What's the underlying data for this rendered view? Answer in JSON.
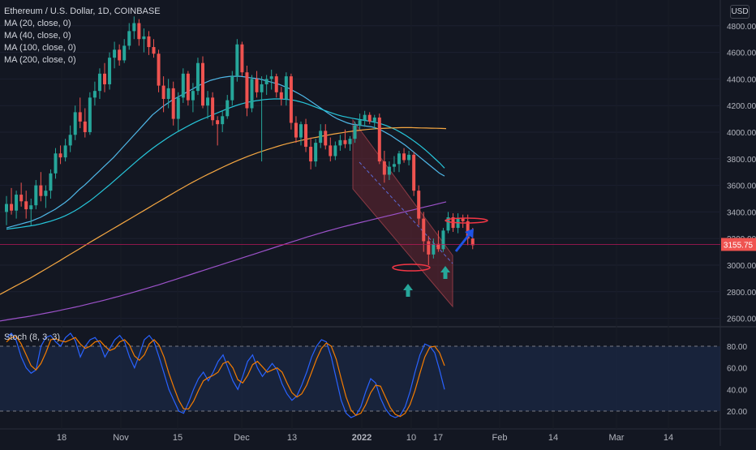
{
  "header": {
    "title": "Ethereum / U.S. Dollar, 1D, COINBASE",
    "indicators": [
      "MA (20, close, 0)",
      "MA (40, close, 0)",
      "MA (100, close, 0)",
      "MA (200, close, 0)"
    ],
    "currency_button": "USD",
    "stoch_label": "Stoch (8, 3, 3)"
  },
  "colors": {
    "background": "#131722",
    "up": "#26a69a",
    "down": "#ef5350",
    "ma20": "#4fb8e8",
    "ma40": "#26c6da",
    "ma100": "#f5a742",
    "ma200": "#9c52c9",
    "stoch_k": "#2962ff",
    "stoch_d": "#f57c00",
    "channel": "#7a2a35",
    "annotation_arrow_up": "#26a69a",
    "annotation_arrow_blue": "#1e53e5",
    "ellipse": "#f23645",
    "price_line": "#c2185b"
  },
  "chart_data": [
    {
      "type": "candlestick",
      "title": "Ethereum / U.S. Dollar, 1D, COINBASE",
      "y_ticks": [
        "2600.00",
        "2800.00",
        "3000.00",
        "3200.00",
        "3400.00",
        "3600.00",
        "3800.00",
        "4000.00",
        "4200.00",
        "4400.00",
        "4600.00",
        "4800.00"
      ],
      "x_ticks": [
        "18",
        "Nov",
        "15",
        "Dec",
        "13",
        "2022",
        "10",
        "17",
        "Feb",
        "14",
        "Mar",
        "14"
      ],
      "ylim": [
        2550,
        4900
      ],
      "last_price_label": "3155.75",
      "candles": [
        [
          3400,
          3520,
          3300,
          3460
        ],
        [
          3460,
          3580,
          3380,
          3410
        ],
        [
          3410,
          3560,
          3350,
          3530
        ],
        [
          3530,
          3620,
          3440,
          3480
        ],
        [
          3480,
          3560,
          3350,
          3420
        ],
        [
          3420,
          3500,
          3300,
          3450
        ],
        [
          3450,
          3640,
          3420,
          3600
        ],
        [
          3600,
          3700,
          3480,
          3520
        ],
        [
          3520,
          3600,
          3430,
          3560
        ],
        [
          3560,
          3720,
          3500,
          3690
        ],
        [
          3690,
          3880,
          3650,
          3840
        ],
        [
          3840,
          3900,
          3760,
          3810
        ],
        [
          3810,
          3950,
          3780,
          3900
        ],
        [
          3900,
          4050,
          3850,
          3980
        ],
        [
          3980,
          4200,
          3940,
          4150
        ],
        [
          4150,
          4260,
          4030,
          4080
        ],
        [
          4080,
          4180,
          3960,
          4000
        ],
        [
          4000,
          4300,
          3980,
          4260
        ],
        [
          4260,
          4380,
          4200,
          4310
        ],
        [
          4310,
          4480,
          4250,
          4440
        ],
        [
          4440,
          4520,
          4300,
          4360
        ],
        [
          4360,
          4600,
          4320,
          4560
        ],
        [
          4560,
          4680,
          4480,
          4620
        ],
        [
          4620,
          4660,
          4500,
          4540
        ],
        [
          4540,
          4700,
          4520,
          4650
        ],
        [
          4650,
          4820,
          4620,
          4760
        ],
        [
          4760,
          4870,
          4700,
          4820
        ],
        [
          4820,
          4850,
          4650,
          4700
        ],
        [
          4700,
          4780,
          4600,
          4720
        ],
        [
          4720,
          4760,
          4580,
          4640
        ],
        [
          4640,
          4700,
          4560,
          4590
        ],
        [
          4590,
          4620,
          4300,
          4350
        ],
        [
          4350,
          4420,
          4150,
          4250
        ],
        [
          4250,
          4400,
          4180,
          4330
        ],
        [
          4330,
          4380,
          4050,
          4100
        ],
        [
          4100,
          4300,
          4000,
          4260
        ],
        [
          4260,
          4480,
          4220,
          4440
        ],
        [
          4440,
          4460,
          4200,
          4240
        ],
        [
          4240,
          4370,
          4150,
          4310
        ],
        [
          4310,
          4560,
          4280,
          4520
        ],
        [
          4520,
          4570,
          4180,
          4200
        ],
        [
          4200,
          4310,
          4100,
          4260
        ],
        [
          4260,
          4300,
          4050,
          4090
        ],
        [
          4090,
          4120,
          3900,
          4060
        ],
        [
          4060,
          4160,
          4000,
          4120
        ],
        [
          4120,
          4280,
          4100,
          4240
        ],
        [
          4240,
          4460,
          4200,
          4420
        ],
        [
          4420,
          4700,
          4380,
          4660
        ],
        [
          4660,
          4680,
          4420,
          4450
        ],
        [
          4450,
          4500,
          4120,
          4180
        ],
        [
          4180,
          4430,
          4150,
          4400
        ],
        [
          4400,
          4460,
          4260,
          4300
        ],
        [
          4300,
          4420,
          3780,
          4360
        ],
        [
          4360,
          4430,
          4280,
          4400
        ],
        [
          4400,
          4470,
          4320,
          4420
        ],
        [
          4420,
          4440,
          4260,
          4300
        ],
        [
          4300,
          4340,
          4200,
          4250
        ],
        [
          4250,
          4450,
          4200,
          4420
        ],
        [
          4420,
          4440,
          4020,
          4070
        ],
        [
          4070,
          4120,
          3920,
          3960
        ],
        [
          3960,
          4080,
          3900,
          4060
        ],
        [
          4060,
          4100,
          3850,
          3890
        ],
        [
          3890,
          3960,
          3720,
          3780
        ],
        [
          3780,
          3950,
          3740,
          3920
        ],
        [
          3920,
          4060,
          3880,
          4010
        ],
        [
          4010,
          4060,
          3870,
          3900
        ],
        [
          3900,
          3960,
          3780,
          3820
        ],
        [
          3820,
          3930,
          3790,
          3900
        ],
        [
          3900,
          3980,
          3860,
          3940
        ],
        [
          3940,
          4020,
          3880,
          3910
        ],
        [
          3910,
          3970,
          3860,
          3950
        ],
        [
          3950,
          4080,
          3920,
          4050
        ],
        [
          4050,
          4140,
          4020,
          4090
        ],
        [
          4090,
          4160,
          4040,
          4130
        ],
        [
          4130,
          4150,
          4060,
          4080
        ],
        [
          4080,
          4130,
          4020,
          4110
        ],
        [
          4110,
          4140,
          3760,
          3780
        ],
        [
          3780,
          3860,
          3620,
          3680
        ],
        [
          3680,
          3780,
          3640,
          3740
        ],
        [
          3740,
          3820,
          3700,
          3760
        ],
        [
          3760,
          3860,
          3700,
          3840
        ],
        [
          3840,
          3880,
          3770,
          3790
        ],
        [
          3790,
          3860,
          3750,
          3830
        ],
        [
          3830,
          3850,
          3520,
          3560
        ],
        [
          3560,
          3600,
          3300,
          3350
        ],
        [
          3350,
          3400,
          3100,
          3180
        ],
        [
          3180,
          3220,
          3000,
          3080
        ],
        [
          3080,
          3200,
          3050,
          3160
        ],
        [
          3160,
          3260,
          3100,
          3120
        ],
        [
          3120,
          3280,
          3100,
          3260
        ],
        [
          3260,
          3400,
          3240,
          3360
        ],
        [
          3360,
          3390,
          3250,
          3280
        ],
        [
          3280,
          3390,
          3240,
          3350
        ],
        [
          3350,
          3380,
          3280,
          3330
        ],
        [
          3330,
          3380,
          3150,
          3200
        ],
        [
          3200,
          3280,
          3120,
          3150
        ]
      ],
      "ma_series": {
        "MA 20": [
          3280,
          3290,
          3300,
          3310,
          3320,
          3330,
          3345,
          3360,
          3380,
          3400,
          3420,
          3445,
          3470,
          3500,
          3535,
          3570,
          3600,
          3635,
          3670,
          3705,
          3740,
          3775,
          3810,
          3850,
          3890,
          3930,
          3970,
          4010,
          4050,
          4090,
          4130,
          4160,
          4190,
          4215,
          4240,
          4260,
          4280,
          4300,
          4320,
          4340,
          4360,
          4375,
          4390,
          4400,
          4410,
          4415,
          4420,
          4420,
          4420,
          4415,
          4410,
          4405,
          4400,
          4390,
          4380,
          4370,
          4360,
          4345,
          4330,
          4310,
          4290,
          4270,
          4245,
          4220,
          4195,
          4170,
          4145,
          4120,
          4100,
          4085,
          4070,
          4060,
          4055,
          4050,
          4045,
          4040,
          4030,
          4015,
          3995,
          3975,
          3950,
          3925,
          3900,
          3870,
          3840,
          3810,
          3780,
          3750,
          3720,
          3690,
          3670
        ],
        "MA 40": [
          3270,
          3275,
          3280,
          3285,
          3290,
          3296,
          3302,
          3310,
          3320,
          3330,
          3342,
          3355,
          3370,
          3388,
          3408,
          3430,
          3455,
          3480,
          3508,
          3538,
          3568,
          3598,
          3630,
          3662,
          3694,
          3726,
          3758,
          3790,
          3820,
          3850,
          3878,
          3905,
          3930,
          3955,
          3978,
          4000,
          4020,
          4040,
          4060,
          4078,
          4095,
          4110,
          4125,
          4140,
          4155,
          4170,
          4185,
          4198,
          4210,
          4220,
          4228,
          4235,
          4240,
          4245,
          4248,
          4250,
          4250,
          4248,
          4245,
          4240,
          4232,
          4222,
          4210,
          4196,
          4182,
          4168,
          4155,
          4142,
          4130,
          4120,
          4112,
          4105,
          4098,
          4092,
          4086,
          4080,
          4072,
          4062,
          4050,
          4035,
          4018,
          3998,
          3976,
          3952,
          3926,
          3898,
          3868,
          3836,
          3802,
          3768,
          3730
        ],
        "MA 100": [
          2780,
          2800,
          2820,
          2840,
          2860,
          2880,
          2900,
          2922,
          2944,
          2966,
          2988,
          3010,
          3032,
          3055,
          3078,
          3100,
          3122,
          3145,
          3168,
          3190,
          3212,
          3234,
          3256,
          3278,
          3300,
          3322,
          3344,
          3366,
          3388,
          3410,
          3432,
          3454,
          3476,
          3498,
          3520,
          3542,
          3564,
          3585,
          3606,
          3626,
          3646,
          3665,
          3684,
          3702,
          3720,
          3738,
          3755,
          3772,
          3788,
          3803,
          3818,
          3832,
          3846,
          3858,
          3870,
          3882,
          3893,
          3904,
          3914,
          3923,
          3932,
          3940,
          3948,
          3956,
          3963,
          3970,
          3977,
          3984,
          3990,
          3996,
          4002,
          4007,
          4012,
          4016,
          4020,
          4023,
          4026,
          4028,
          4030,
          4032,
          4033,
          4034,
          4034,
          4034,
          4033,
          4032,
          4031,
          4030,
          4029,
          4028,
          4027
        ],
        "MA 200": [
          2580,
          2586,
          2592,
          2598,
          2604,
          2610,
          2616,
          2623,
          2630,
          2637,
          2644,
          2651,
          2659,
          2667,
          2675,
          2683,
          2691,
          2700,
          2709,
          2718,
          2727,
          2736,
          2746,
          2756,
          2766,
          2776,
          2786,
          2797,
          2808,
          2819,
          2830,
          2841,
          2852,
          2864,
          2876,
          2888,
          2900,
          2912,
          2924,
          2936,
          2948,
          2960,
          2972,
          2984,
          2996,
          3008,
          3020,
          3032,
          3044,
          3056,
          3068,
          3080,
          3092,
          3104,
          3116,
          3128,
          3140,
          3152,
          3164,
          3176,
          3188,
          3200,
          3212,
          3223,
          3234,
          3245,
          3256,
          3266,
          3276,
          3286,
          3296,
          3305,
          3314,
          3323,
          3332,
          3341,
          3350,
          3359,
          3368,
          3377,
          3386,
          3395,
          3404,
          3413,
          3422,
          3431,
          3440,
          3449,
          3458,
          3467,
          3476
        ]
      }
    },
    {
      "type": "line",
      "title": "Stoch (8, 3, 3)",
      "y_ticks": [
        "20.00",
        "40.00",
        "60.00",
        "80.00"
      ],
      "ylim": [
        5,
        100
      ],
      "levels": [
        80,
        20
      ],
      "series": [
        {
          "name": "%K",
          "values": [
            88,
            92,
            85,
            70,
            60,
            55,
            58,
            80,
            88,
            90,
            84,
            80,
            88,
            92,
            85,
            70,
            80,
            86,
            88,
            82,
            70,
            78,
            86,
            90,
            84,
            70,
            60,
            72,
            86,
            90,
            84,
            70,
            55,
            40,
            30,
            20,
            18,
            28,
            40,
            50,
            56,
            48,
            56,
            66,
            72,
            60,
            48,
            40,
            52,
            66,
            72,
            60,
            52,
            58,
            64,
            58,
            45,
            36,
            30,
            34,
            44,
            56,
            70,
            80,
            86,
            84,
            70,
            50,
            30,
            18,
            14,
            16,
            24,
            38,
            50,
            46,
            32,
            22,
            16,
            14,
            16,
            24,
            38,
            56,
            72,
            82,
            80,
            74,
            58,
            40
          ]
        },
        {
          "name": "%D",
          "values": [
            84,
            88,
            89,
            82,
            72,
            62,
            58,
            64,
            74,
            86,
            87,
            85,
            84,
            86,
            88,
            82,
            78,
            80,
            84,
            85,
            80,
            76,
            78,
            84,
            86,
            81,
            71,
            67,
            72,
            82,
            86,
            81,
            70,
            55,
            42,
            30,
            22,
            22,
            29,
            39,
            48,
            51,
            53,
            56,
            64,
            66,
            60,
            49,
            46,
            53,
            63,
            66,
            61,
            56,
            58,
            60,
            56,
            46,
            37,
            33,
            36,
            44,
            56,
            68,
            78,
            83,
            80,
            68,
            50,
            33,
            21,
            16,
            18,
            26,
            37,
            44,
            43,
            33,
            23,
            17,
            15,
            18,
            26,
            39,
            55,
            70,
            79,
            80,
            74,
            62
          ]
        }
      ]
    }
  ],
  "annotations": {
    "channel": [
      [
        435,
        148
      ],
      [
        558,
        315
      ],
      [
        558,
        378
      ],
      [
        435,
        233
      ]
    ],
    "dashed_line": [
      [
        443,
        200
      ],
      [
        558,
        325
      ]
    ],
    "ellipse_low": [
      507,
      330,
      23,
      4
    ],
    "ellipse_high": [
      575,
      272,
      26,
      3
    ],
    "up_arrows": [
      [
        503,
        364
      ],
      [
        549,
        342
      ]
    ],
    "blue_arrow": [
      [
        562,
        310
      ],
      [
        584,
        282
      ]
    ]
  }
}
